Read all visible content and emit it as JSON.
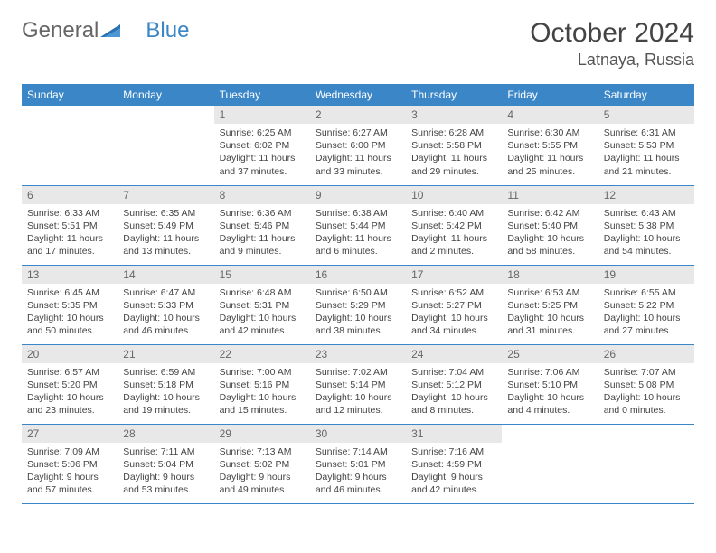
{
  "logo": {
    "part1": "General",
    "part2": "Blue"
  },
  "title": "October 2024",
  "location": "Latnaya, Russia",
  "header_bg": "#3b86c6",
  "daynum_bg": "#e8e8e8",
  "border_color": "#3b86c6",
  "text_color": "#444444",
  "columns": [
    "Sunday",
    "Monday",
    "Tuesday",
    "Wednesday",
    "Thursday",
    "Friday",
    "Saturday"
  ],
  "weeks": [
    [
      null,
      null,
      {
        "n": "1",
        "sr": "6:25 AM",
        "ss": "6:02 PM",
        "dl": "11 hours and 37 minutes."
      },
      {
        "n": "2",
        "sr": "6:27 AM",
        "ss": "6:00 PM",
        "dl": "11 hours and 33 minutes."
      },
      {
        "n": "3",
        "sr": "6:28 AM",
        "ss": "5:58 PM",
        "dl": "11 hours and 29 minutes."
      },
      {
        "n": "4",
        "sr": "6:30 AM",
        "ss": "5:55 PM",
        "dl": "11 hours and 25 minutes."
      },
      {
        "n": "5",
        "sr": "6:31 AM",
        "ss": "5:53 PM",
        "dl": "11 hours and 21 minutes."
      }
    ],
    [
      {
        "n": "6",
        "sr": "6:33 AM",
        "ss": "5:51 PM",
        "dl": "11 hours and 17 minutes."
      },
      {
        "n": "7",
        "sr": "6:35 AM",
        "ss": "5:49 PM",
        "dl": "11 hours and 13 minutes."
      },
      {
        "n": "8",
        "sr": "6:36 AM",
        "ss": "5:46 PM",
        "dl": "11 hours and 9 minutes."
      },
      {
        "n": "9",
        "sr": "6:38 AM",
        "ss": "5:44 PM",
        "dl": "11 hours and 6 minutes."
      },
      {
        "n": "10",
        "sr": "6:40 AM",
        "ss": "5:42 PM",
        "dl": "11 hours and 2 minutes."
      },
      {
        "n": "11",
        "sr": "6:42 AM",
        "ss": "5:40 PM",
        "dl": "10 hours and 58 minutes."
      },
      {
        "n": "12",
        "sr": "6:43 AM",
        "ss": "5:38 PM",
        "dl": "10 hours and 54 minutes."
      }
    ],
    [
      {
        "n": "13",
        "sr": "6:45 AM",
        "ss": "5:35 PM",
        "dl": "10 hours and 50 minutes."
      },
      {
        "n": "14",
        "sr": "6:47 AM",
        "ss": "5:33 PM",
        "dl": "10 hours and 46 minutes."
      },
      {
        "n": "15",
        "sr": "6:48 AM",
        "ss": "5:31 PM",
        "dl": "10 hours and 42 minutes."
      },
      {
        "n": "16",
        "sr": "6:50 AM",
        "ss": "5:29 PM",
        "dl": "10 hours and 38 minutes."
      },
      {
        "n": "17",
        "sr": "6:52 AM",
        "ss": "5:27 PM",
        "dl": "10 hours and 34 minutes."
      },
      {
        "n": "18",
        "sr": "6:53 AM",
        "ss": "5:25 PM",
        "dl": "10 hours and 31 minutes."
      },
      {
        "n": "19",
        "sr": "6:55 AM",
        "ss": "5:22 PM",
        "dl": "10 hours and 27 minutes."
      }
    ],
    [
      {
        "n": "20",
        "sr": "6:57 AM",
        "ss": "5:20 PM",
        "dl": "10 hours and 23 minutes."
      },
      {
        "n": "21",
        "sr": "6:59 AM",
        "ss": "5:18 PM",
        "dl": "10 hours and 19 minutes."
      },
      {
        "n": "22",
        "sr": "7:00 AM",
        "ss": "5:16 PM",
        "dl": "10 hours and 15 minutes."
      },
      {
        "n": "23",
        "sr": "7:02 AM",
        "ss": "5:14 PM",
        "dl": "10 hours and 12 minutes."
      },
      {
        "n": "24",
        "sr": "7:04 AM",
        "ss": "5:12 PM",
        "dl": "10 hours and 8 minutes."
      },
      {
        "n": "25",
        "sr": "7:06 AM",
        "ss": "5:10 PM",
        "dl": "10 hours and 4 minutes."
      },
      {
        "n": "26",
        "sr": "7:07 AM",
        "ss": "5:08 PM",
        "dl": "10 hours and 0 minutes."
      }
    ],
    [
      {
        "n": "27",
        "sr": "7:09 AM",
        "ss": "5:06 PM",
        "dl": "9 hours and 57 minutes."
      },
      {
        "n": "28",
        "sr": "7:11 AM",
        "ss": "5:04 PM",
        "dl": "9 hours and 53 minutes."
      },
      {
        "n": "29",
        "sr": "7:13 AM",
        "ss": "5:02 PM",
        "dl": "9 hours and 49 minutes."
      },
      {
        "n": "30",
        "sr": "7:14 AM",
        "ss": "5:01 PM",
        "dl": "9 hours and 46 minutes."
      },
      {
        "n": "31",
        "sr": "7:16 AM",
        "ss": "4:59 PM",
        "dl": "9 hours and 42 minutes."
      },
      null,
      null
    ]
  ],
  "labels": {
    "sunrise": "Sunrise:",
    "sunset": "Sunset:",
    "daylight": "Daylight:"
  }
}
